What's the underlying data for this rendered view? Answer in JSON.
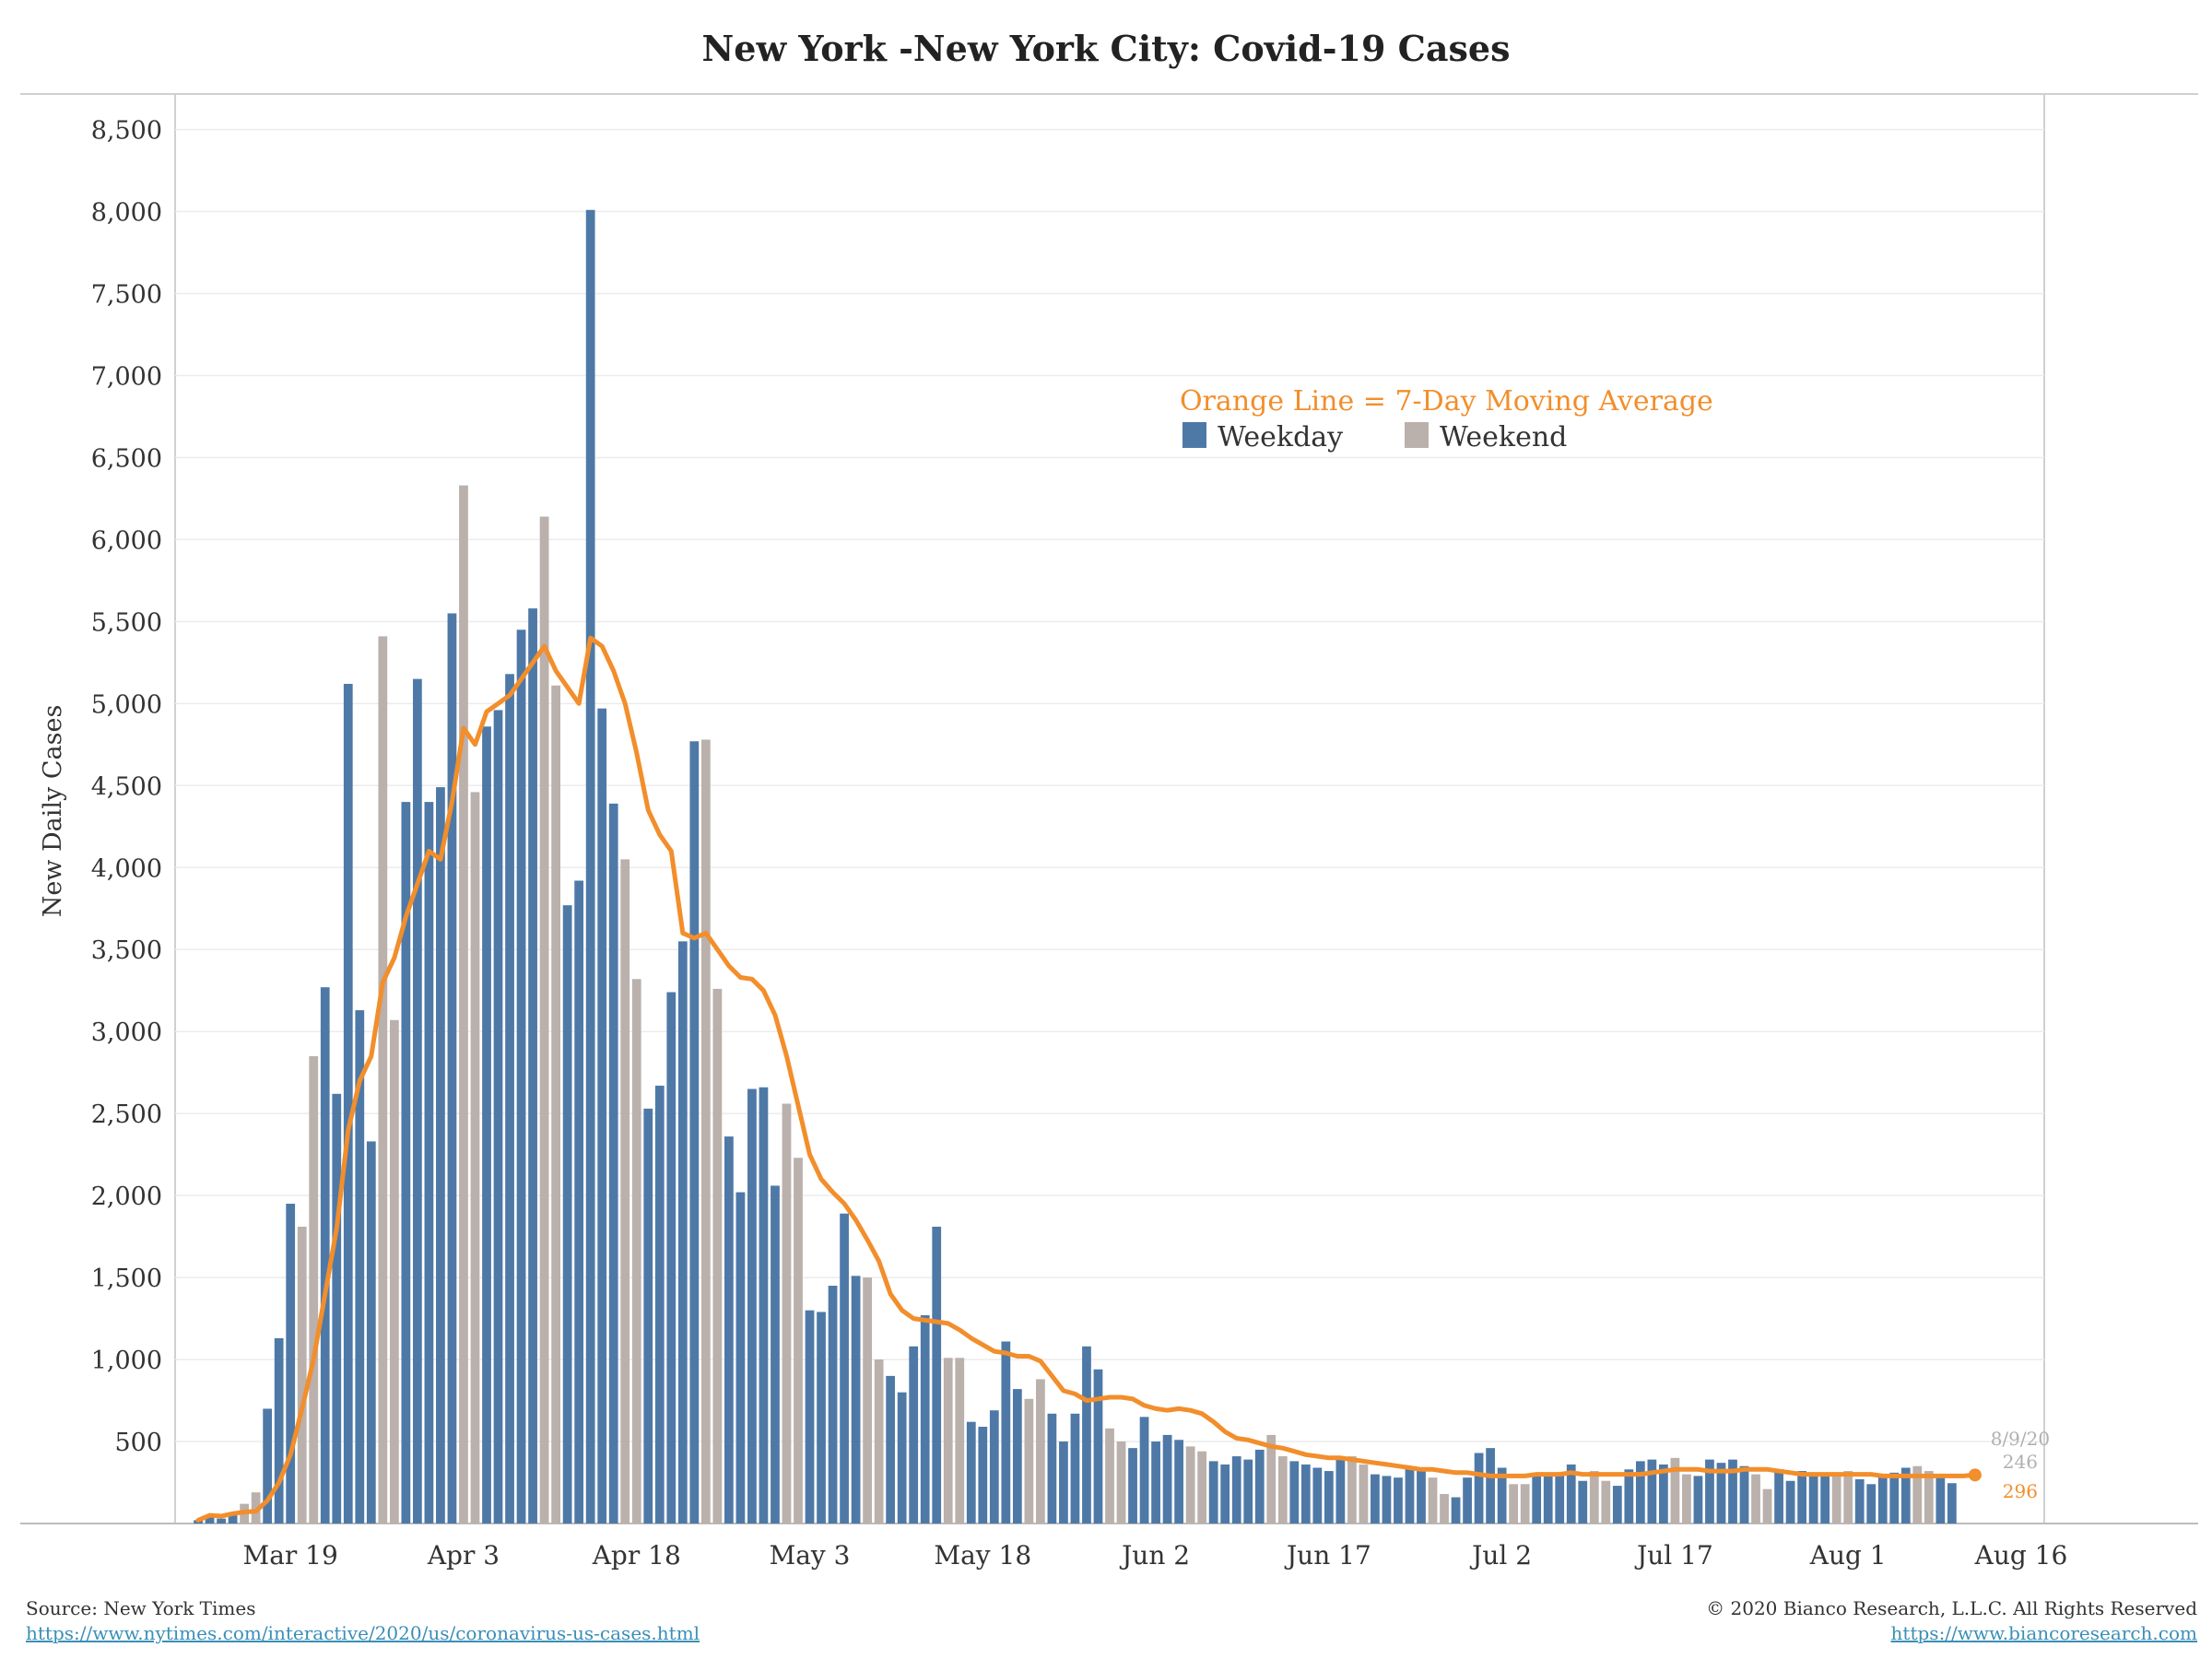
{
  "chart_data": {
    "type": "bar",
    "title": "New York -New York City: Covid-19 Cases",
    "ylabel": "New Daily Cases",
    "xlabel": "",
    "ylim": [
      0,
      8700
    ],
    "yticks": [
      500,
      1000,
      1500,
      2000,
      2500,
      3000,
      3500,
      4000,
      4500,
      5000,
      5500,
      6000,
      6500,
      7000,
      7500,
      8000,
      8500
    ],
    "ytick_labels": [
      "500",
      "1,000",
      "1,500",
      "2,000",
      "2,500",
      "3,000",
      "3,500",
      "4,000",
      "4,500",
      "5,000",
      "5,500",
      "6,000",
      "6,500",
      "7,000",
      "7,500",
      "8,000",
      "8,500"
    ],
    "x_start_date": "2020-03-11",
    "x_tick_labels": [
      "Mar 19",
      "Apr 3",
      "Apr 18",
      "May 3",
      "May 18",
      "Jun 2",
      "Jun 17",
      "Jul 2",
      "Jul 17",
      "Aug 1",
      "Aug 16"
    ],
    "x_tick_dates": [
      "2020-03-19",
      "2020-04-03",
      "2020-04-18",
      "2020-05-03",
      "2020-05-18",
      "2020-06-02",
      "2020-06-17",
      "2020-07-02",
      "2020-07-17",
      "2020-08-01",
      "2020-08-16"
    ],
    "x_range_dates": [
      "2020-03-09",
      "2020-08-18"
    ],
    "grid": true,
    "legend_position": "upper-center",
    "annotation_title": "Orange Line = 7-Day Moving Average",
    "legend": [
      {
        "name": "Weekday",
        "color": "#4e79a7"
      },
      {
        "name": "Weekend",
        "color": "#bab0ac"
      }
    ],
    "series": [
      {
        "name": "New Daily Cases",
        "values": [
          20,
          40,
          30,
          60,
          120,
          190,
          700,
          1130,
          1950,
          1810,
          2850,
          3270,
          2620,
          5120,
          3130,
          2330,
          5410,
          3070,
          4400,
          5150,
          4400,
          4490,
          5550,
          6330,
          4460,
          4860,
          4960,
          5180,
          5450,
          5580,
          6140,
          5110,
          3770,
          3920,
          8010,
          4970,
          4390,
          4050,
          3320,
          2530,
          2670,
          3240,
          3550,
          4770,
          4780,
          3260,
          2360,
          2020,
          2650,
          2660,
          2060,
          2560,
          2230,
          1300,
          1290,
          1450,
          1890,
          1510,
          1500,
          1000,
          900,
          800,
          1080,
          1270,
          1810,
          1010,
          1010,
          620,
          590,
          690,
          1110,
          820,
          760,
          880,
          670,
          500,
          670,
          1080,
          940,
          580,
          500,
          460,
          650,
          500,
          540,
          510,
          470,
          440,
          380,
          360,
          410,
          390,
          450,
          540,
          410,
          380,
          360,
          340,
          320,
          410,
          410,
          360,
          300,
          290,
          280,
          340,
          330,
          280,
          180,
          160,
          280,
          430,
          460,
          340,
          240,
          240,
          300,
          290,
          300,
          360,
          260,
          320,
          260,
          230,
          330,
          380,
          390,
          360,
          400,
          300,
          290,
          390,
          370,
          390,
          350,
          300,
          210,
          330,
          260,
          320,
          290,
          290,
          300,
          320,
          270,
          240,
          300,
          310,
          340,
          350,
          320,
          300,
          246
        ],
        "weekend": [
          false,
          false,
          false,
          false,
          true,
          true,
          false,
          false,
          false,
          true,
          true,
          false,
          false,
          false,
          false,
          false,
          true,
          true,
          false,
          false,
          false,
          false,
          false,
          true,
          true,
          false,
          false,
          false,
          false,
          false,
          true,
          true,
          false,
          false,
          false,
          false,
          false,
          true,
          true,
          false,
          false,
          false,
          false,
          false,
          true,
          true,
          false,
          false,
          false,
          false,
          false,
          true,
          true,
          false,
          false,
          false,
          false,
          false,
          true,
          true,
          false,
          false,
          false,
          false,
          false,
          true,
          true,
          false,
          false,
          false,
          false,
          false,
          true,
          true,
          false,
          false,
          false,
          false,
          false,
          true,
          true,
          false,
          false,
          false,
          false,
          false,
          true,
          true,
          false,
          false,
          false,
          false,
          false,
          true,
          true,
          false,
          false,
          false,
          false,
          false,
          true,
          true,
          false,
          false,
          false,
          false,
          false,
          true,
          true,
          false,
          false,
          false,
          false,
          false,
          true,
          true,
          false,
          false,
          false,
          false,
          false,
          true,
          true,
          false,
          false,
          false,
          false,
          false,
          true,
          true,
          false,
          false,
          false,
          false,
          false,
          true,
          true,
          false,
          false,
          false,
          false,
          false,
          true,
          true,
          false,
          false,
          false,
          false,
          false,
          true,
          true
        ]
      },
      {
        "name": "7-Day Moving Average",
        "values": [
          20,
          50,
          45,
          60,
          70,
          75,
          140,
          250,
          420,
          700,
          1000,
          1400,
          1800,
          2400,
          2700,
          2850,
          3300,
          3450,
          3700,
          3900,
          4100,
          4050,
          4400,
          4850,
          4750,
          4950,
          5000,
          5050,
          5150,
          5250,
          5350,
          5200,
          5100,
          5000,
          5400,
          5350,
          5200,
          5000,
          4700,
          4350,
          4200,
          4100,
          3600,
          3570,
          3600,
          3500,
          3400,
          3330,
          3320,
          3250,
          3100,
          2850,
          2550,
          2250,
          2100,
          2020,
          1950,
          1850,
          1730,
          1600,
          1400,
          1300,
          1250,
          1240,
          1230,
          1220,
          1180,
          1130,
          1090,
          1050,
          1040,
          1020,
          1020,
          990,
          900,
          810,
          790,
          750,
          760,
          770,
          770,
          760,
          720,
          700,
          690,
          700,
          690,
          670,
          620,
          560,
          520,
          510,
          490,
          470,
          460,
          440,
          420,
          410,
          400,
          400,
          390,
          380,
          370,
          360,
          350,
          340,
          330,
          330,
          320,
          310,
          310,
          300,
          290,
          290,
          290,
          290,
          300,
          300,
          300,
          310,
          300,
          300,
          300,
          300,
          300,
          300,
          310,
          320,
          330,
          330,
          330,
          320,
          320,
          320,
          330,
          330,
          330,
          320,
          310,
          300,
          300,
          300,
          300,
          300,
          300,
          300,
          290,
          290,
          290,
          290,
          290,
          290,
          290,
          290,
          296
        ]
      }
    ],
    "end_labels": {
      "date": "8/9/20",
      "bar_value": "246",
      "ma_value": "296"
    },
    "colors": {
      "weekday": "#4e79a7",
      "weekend": "#bab0ac",
      "moving_average": "#f28e2b",
      "grid": "#ececec",
      "axis": "#d0d0d0",
      "text": "#333333"
    }
  },
  "footer": {
    "source_label": "Source: New York Times",
    "source_url": "https://www.nytimes.com/interactive/2020/us/coronavirus-us-cases.html",
    "copyright": "© 2020 Bianco Research, L.L.C. All Rights Reserved",
    "site_url": "https://www.biancoresearch.com"
  }
}
